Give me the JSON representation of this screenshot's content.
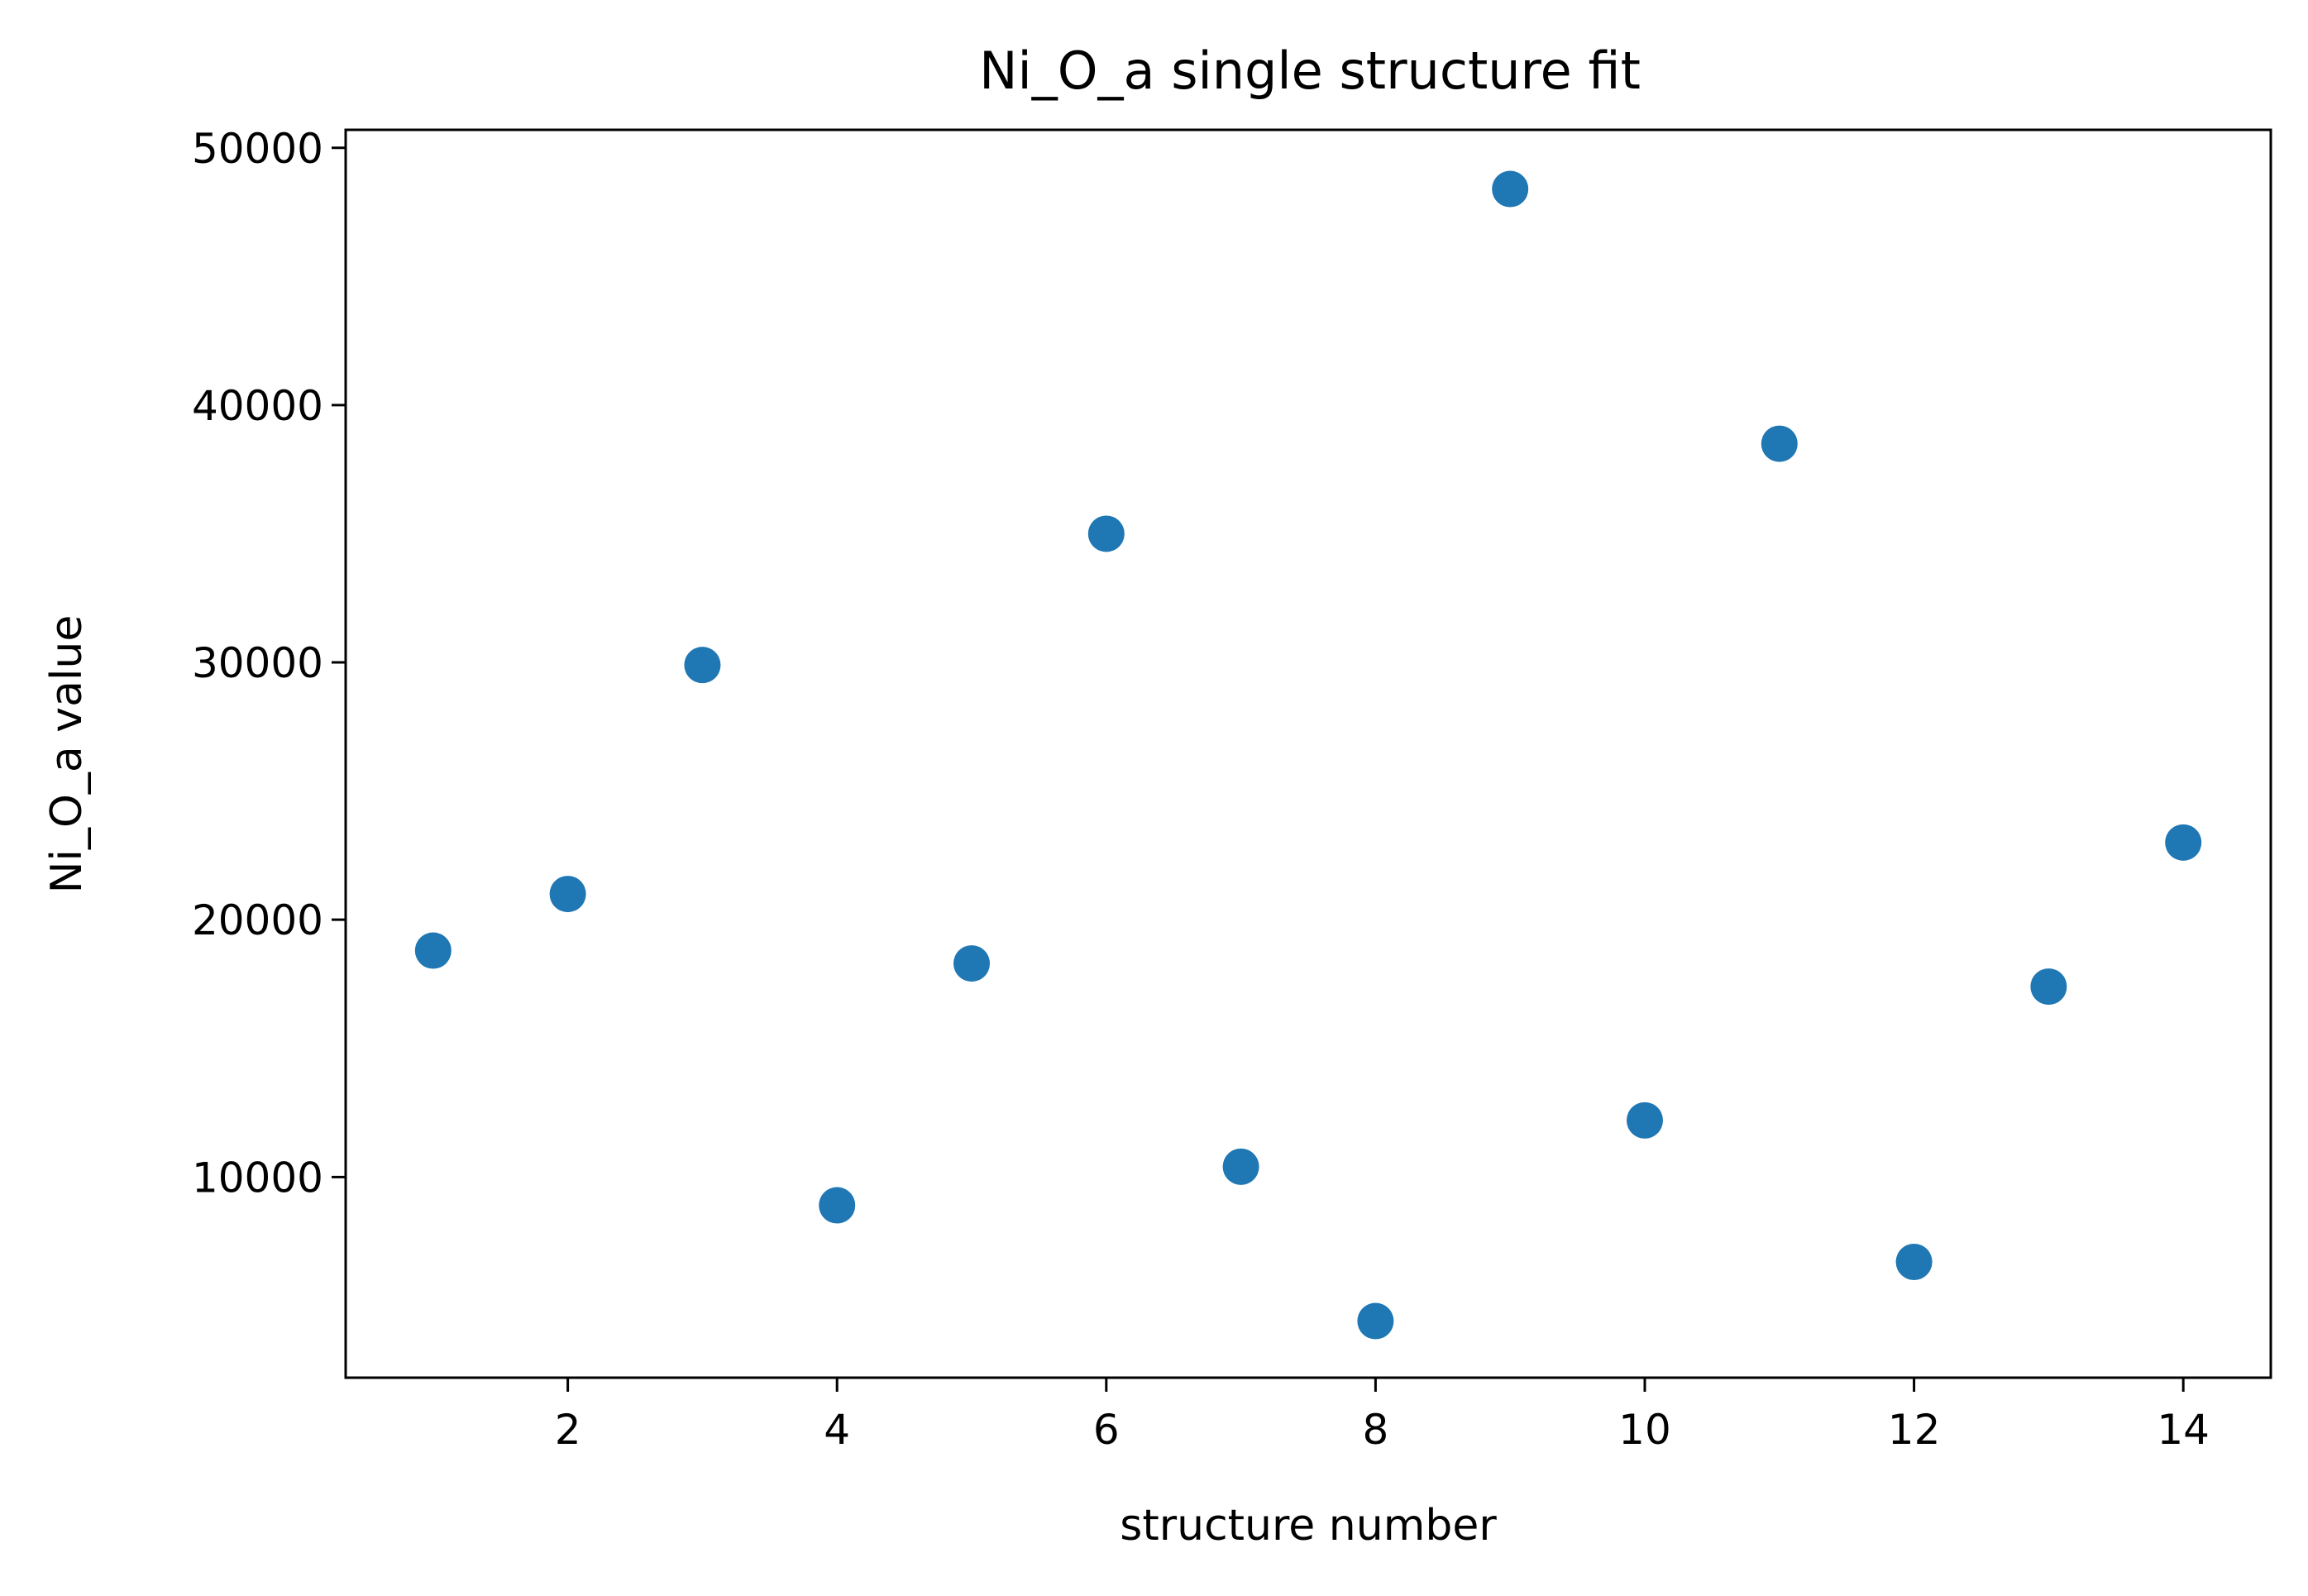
{
  "chart_data": {
    "type": "scatter",
    "title": "Ni_O_a single structure fit",
    "xlabel": "structure number",
    "ylabel": "Ni_O_a value",
    "xlim": [
      0.35,
      14.65
    ],
    "ylim": [
      2200,
      50700
    ],
    "x_ticks": [
      "2",
      "4",
      "6",
      "8",
      "10",
      "12",
      "14"
    ],
    "y_ticks": [
      "10000",
      "20000",
      "30000",
      "40000",
      "50000"
    ],
    "grid": false,
    "legend": "none",
    "marker_color": "#1f77b4",
    "series": [
      {
        "x": [
          1,
          2,
          3,
          4,
          5,
          6,
          7,
          8,
          9,
          10,
          11,
          12,
          13,
          14
        ],
        "y": [
          18800,
          21000,
          29900,
          8900,
          18300,
          35000,
          10400,
          4400,
          48400,
          12200,
          38500,
          6700,
          17400,
          23000
        ]
      }
    ]
  }
}
